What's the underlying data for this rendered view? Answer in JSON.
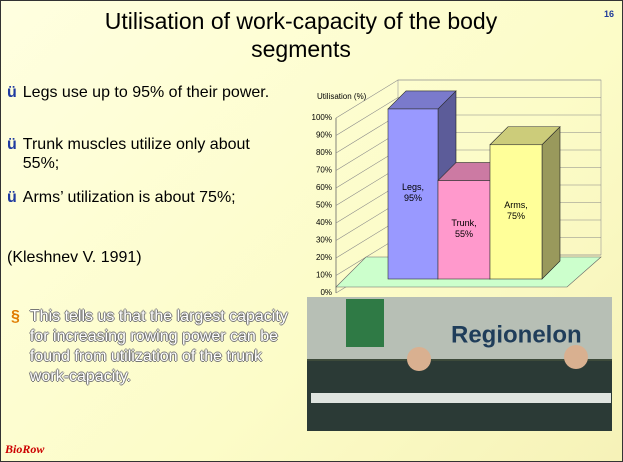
{
  "slide_number": "16",
  "title": "Utilisation of work-capacity of the body segments",
  "bullet_mark": "ü",
  "bullets": [
    "Legs use up to 95% of their power.",
    "Trunk muscles utilize only about 55%;",
    "Arms’ utilization is about 75%;"
  ],
  "citation": "(Kleshnev V. 1991)",
  "note_mark": "§",
  "note": "This tells us that the largest capacity for increasing rowing power can be found from utilization of the trunk work-capacity.",
  "logo": "BioRow",
  "photo_text": "Regionelon",
  "chart_data": {
    "type": "bar3d",
    "y_label": "Utilisation (%)",
    "values": [
      95,
      55,
      75
    ],
    "value_labels": [
      "Legs, 95%",
      "Trunk, 55%",
      "Arms, 75%"
    ],
    "colors": [
      "#9999ff",
      "#ff99cc",
      "#ffff99"
    ],
    "ylim": [
      0,
      100
    ],
    "yticks": [
      {
        "value": 0,
        "label": "0%"
      },
      {
        "value": 10,
        "label": "10%"
      },
      {
        "value": 20,
        "label": "20%"
      },
      {
        "value": 30,
        "label": "30%"
      },
      {
        "value": 40,
        "label": "40%"
      },
      {
        "value": 50,
        "label": "50%"
      },
      {
        "value": 60,
        "label": "60%"
      },
      {
        "value": 70,
        "label": "70%"
      },
      {
        "value": 80,
        "label": "80%"
      },
      {
        "value": 90,
        "label": "90%"
      },
      {
        "value": 100,
        "label": "100%"
      }
    ],
    "grid": true
  }
}
